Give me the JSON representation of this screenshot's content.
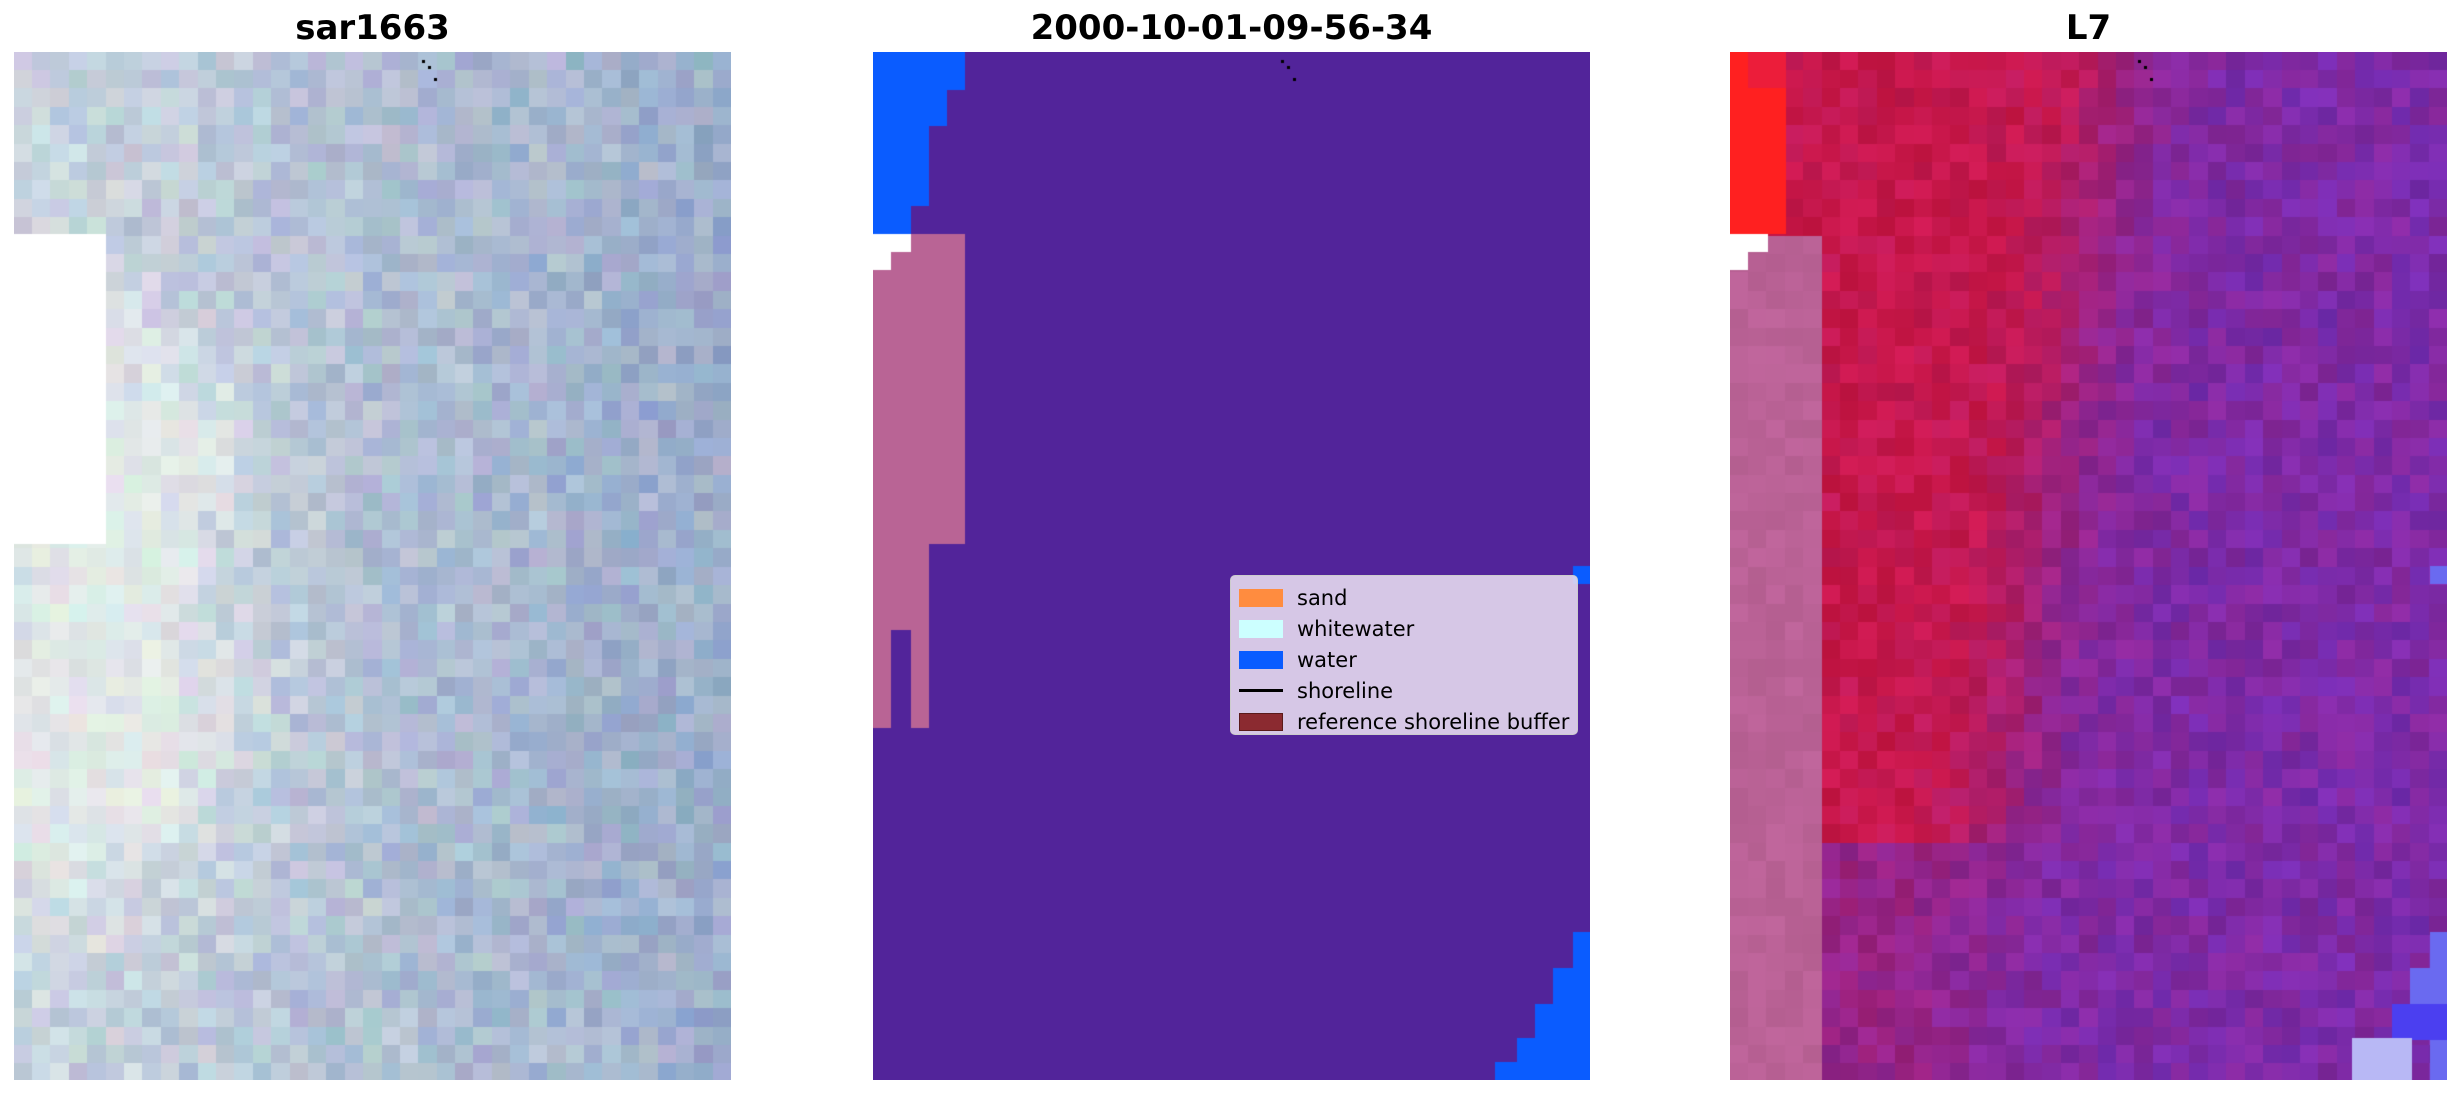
{
  "titles": {
    "left": "sar1663",
    "center": "2000-10-01-09-56-34",
    "right": "L7"
  },
  "legend": {
    "items": [
      {
        "label": "sand",
        "color": "#ff8c3f",
        "kind": "patch"
      },
      {
        "label": "whitewater",
        "color": "#ccffff",
        "kind": "patch"
      },
      {
        "label": "water",
        "color": "#0a5cff",
        "kind": "patch"
      },
      {
        "label": "shoreline",
        "color": "#000000",
        "kind": "line"
      },
      {
        "label": "reference shoreline buffer",
        "color": "#8b2a30",
        "kind": "patch"
      }
    ]
  },
  "colors": {
    "classified_background": "#52249a",
    "classified_water": "#0a5cff",
    "classified_pink_band": "#b96495",
    "rgb_base": "#8a9fc4",
    "false_color_red": "#c8174a",
    "false_color_purple": "#7e2aa6"
  }
}
